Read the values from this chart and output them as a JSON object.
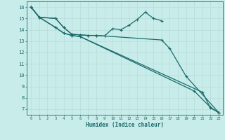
{
  "xlabel": "Humidex (Indice chaleur)",
  "background_color": "#c8ecea",
  "grid_color": "#b8dbd8",
  "line_color": "#1a6b6b",
  "xlim": [
    -0.5,
    23.5
  ],
  "ylim": [
    6.5,
    16.5
  ],
  "xticks": [
    0,
    1,
    2,
    3,
    4,
    5,
    6,
    7,
    8,
    9,
    10,
    11,
    12,
    13,
    14,
    15,
    16,
    17,
    18,
    19,
    20,
    21,
    22,
    23
  ],
  "yticks": [
    7,
    8,
    9,
    10,
    11,
    12,
    13,
    14,
    15,
    16
  ],
  "series": [
    {
      "points": [
        [
          0,
          16
        ],
        [
          1,
          15.1
        ],
        [
          3,
          15.0
        ],
        [
          4,
          14.2
        ],
        [
          5,
          13.6
        ],
        [
          6,
          13.55
        ],
        [
          7,
          13.5
        ],
        [
          8,
          13.5
        ],
        [
          9,
          13.45
        ],
        [
          10,
          14.1
        ],
        [
          11,
          14.0
        ],
        [
          12,
          14.4
        ],
        [
          13,
          14.9
        ],
        [
          14,
          15.55
        ],
        [
          15,
          15.0
        ],
        [
          16,
          14.8
        ]
      ]
    },
    {
      "points": [
        [
          0,
          16
        ],
        [
          1,
          15.1
        ],
        [
          3,
          15.0
        ],
        [
          4,
          14.2
        ],
        [
          5,
          13.6
        ],
        [
          6,
          13.55
        ],
        [
          7,
          13.5
        ],
        [
          8,
          13.5
        ],
        [
          9,
          13.45
        ],
        [
          16,
          13.1
        ],
        [
          17,
          12.35
        ],
        [
          19,
          9.9
        ],
        [
          23,
          6.7
        ]
      ]
    },
    {
      "points": [
        [
          0,
          16
        ],
        [
          1,
          15.1
        ],
        [
          3,
          14.2
        ],
        [
          4,
          13.7
        ],
        [
          5,
          13.5
        ],
        [
          6,
          13.4
        ],
        [
          20,
          8.6
        ],
        [
          22,
          7.15
        ],
        [
          23,
          6.7
        ]
      ]
    },
    {
      "points": [
        [
          0,
          16
        ],
        [
          1,
          15.1
        ],
        [
          3,
          14.2
        ],
        [
          4,
          13.7
        ],
        [
          5,
          13.5
        ],
        [
          6,
          13.4
        ],
        [
          21,
          8.5
        ],
        [
          22,
          7.1
        ],
        [
          23,
          6.7
        ]
      ]
    }
  ]
}
